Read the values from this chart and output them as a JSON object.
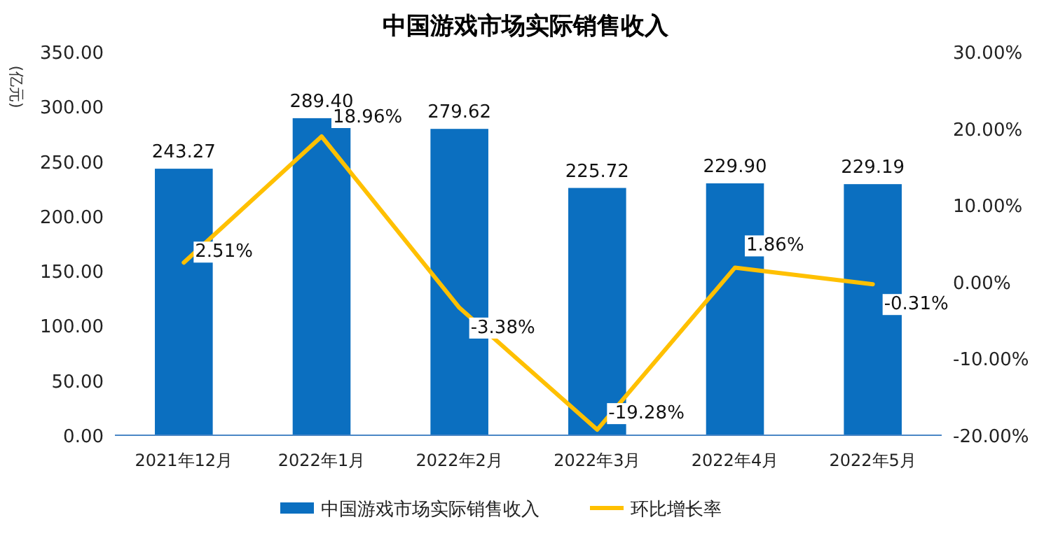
{
  "chart_data": {
    "type": "bar",
    "title": "中国游戏市场实际销售收入",
    "ylabel": "(亿元)",
    "categories": [
      "2021年12月",
      "2022年1月",
      "2022年2月",
      "2022年3月",
      "2022年4月",
      "2022年5月"
    ],
    "series": [
      {
        "name": "中国游戏市场实际销售收入",
        "color": "#0b6fc0",
        "values": [
          243.27,
          289.4,
          279.62,
          225.72,
          229.9,
          229.19
        ],
        "value_labels": [
          "243.27",
          "289.40",
          "279.62",
          "225.72",
          "229.90",
          "229.19"
        ]
      },
      {
        "name": "环比增长率",
        "type": "line",
        "axis": "y2",
        "color": "#ffc000",
        "values": [
          2.51,
          18.96,
          -3.38,
          -19.28,
          1.86,
          -0.31
        ],
        "value_labels": [
          "2.51%",
          "18.96%",
          "-3.38%",
          "-19.28%",
          "1.86%",
          "-0.31%"
        ]
      }
    ],
    "ylim": [
      0,
      350
    ],
    "yticks": [
      {
        "value": 0,
        "label": "0.00"
      },
      {
        "value": 50,
        "label": "50.00"
      },
      {
        "value": 100,
        "label": "100.00"
      },
      {
        "value": 150,
        "label": "150.00"
      },
      {
        "value": 200,
        "label": "200.00"
      },
      {
        "value": 250,
        "label": "250.00"
      },
      {
        "value": 300,
        "label": "300.00"
      },
      {
        "value": 350,
        "label": "350.00"
      }
    ],
    "y2lim": [
      -20,
      30
    ],
    "y2ticks": [
      {
        "value": -20,
        "label": "-20.00%"
      },
      {
        "value": -10,
        "label": "-10.00%"
      },
      {
        "value": 0,
        "label": "0.00%"
      },
      {
        "value": 10,
        "label": "10.00%"
      },
      {
        "value": 20,
        "label": "20.00%"
      },
      {
        "value": 30,
        "label": "30.00%"
      }
    ],
    "grid": false,
    "legend": "bottom",
    "marker": "none",
    "line_style": "solid"
  }
}
